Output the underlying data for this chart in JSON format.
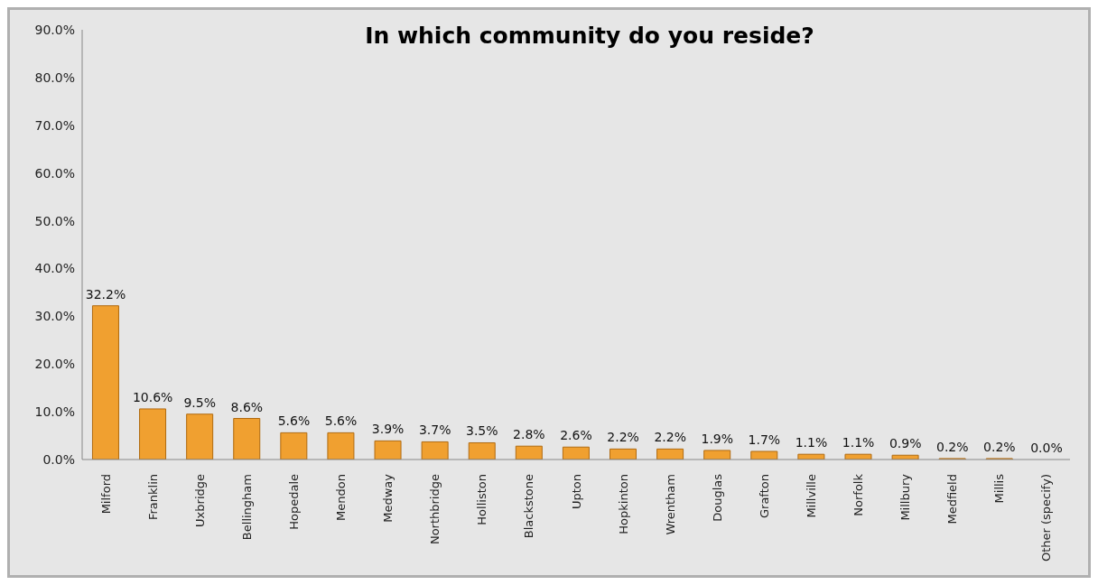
{
  "chart_data": {
    "type": "bar",
    "title": "In which community do you reside?",
    "categories": [
      "Milford",
      "Franklin",
      "Uxbridge",
      "Bellingham",
      "Hopedale",
      "Mendon",
      "Medway",
      "Northbridge",
      "Holliston",
      "Blackstone",
      "Upton",
      "Hopkinton",
      "Wrentham",
      "Douglas",
      "Grafton",
      "Millville",
      "Norfolk",
      "Millbury",
      "Medfield",
      "Millis",
      "Other (specify)"
    ],
    "values": [
      32.2,
      10.6,
      9.5,
      8.6,
      5.6,
      5.6,
      3.9,
      3.7,
      3.5,
      2.8,
      2.6,
      2.2,
      2.2,
      1.9,
      1.7,
      1.1,
      1.1,
      0.9,
      0.2,
      0.2,
      0.0
    ],
    "value_labels": [
      "32.2%",
      "10.6%",
      "9.5%",
      "8.6%",
      "5.6%",
      "5.6%",
      "3.9%",
      "3.7%",
      "3.5%",
      "2.8%",
      "2.6%",
      "2.2%",
      "2.2%",
      "1.9%",
      "1.7%",
      "1.1%",
      "1.1%",
      "0.9%",
      "0.2%",
      "0.2%",
      "0.0%"
    ],
    "color": "#f0a030",
    "ylim": [
      0,
      90
    ],
    "yticks": [
      {
        "value": 0,
        "label": "0.0%"
      },
      {
        "value": 10,
        "label": "10.0%"
      },
      {
        "value": 20,
        "label": "20.0%"
      },
      {
        "value": 30,
        "label": "30.0%"
      },
      {
        "value": 40,
        "label": "40.0%"
      },
      {
        "value": 50,
        "label": "50.0%"
      },
      {
        "value": 60,
        "label": "60.0%"
      },
      {
        "value": 70,
        "label": "70.0%"
      },
      {
        "value": 80,
        "label": "80.0%"
      },
      {
        "value": 90,
        "label": "90.0%"
      }
    ]
  }
}
